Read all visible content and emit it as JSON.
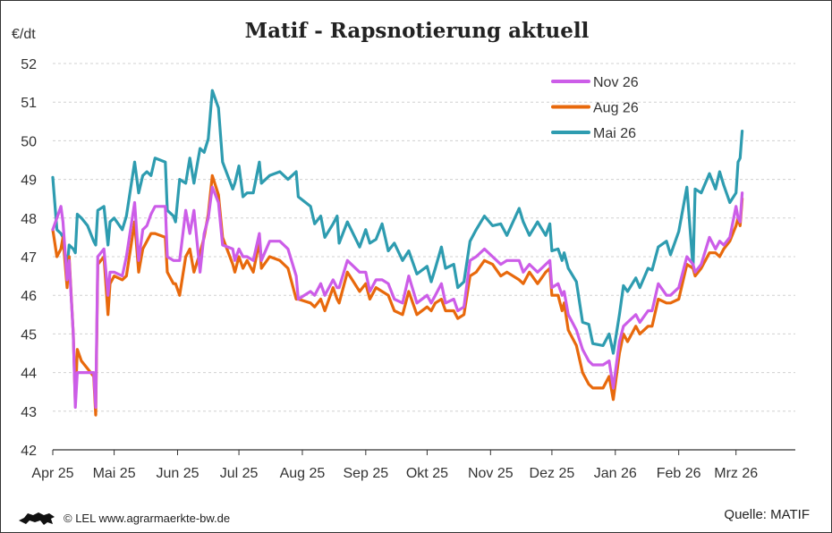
{
  "chart_data": {
    "type": "line",
    "title": "Matif - Rapsnotierung aktuell",
    "ylabel": "€/dt",
    "xlabel": "",
    "ylim": [
      42,
      52
    ],
    "xlim": [
      "2025-04-01",
      "2026-03-30"
    ],
    "yticks": [
      "42",
      "43",
      "44",
      "45",
      "46",
      "47",
      "48",
      "49",
      "50",
      "51",
      "52"
    ],
    "xticks": [
      {
        "date": "2025-04-01",
        "label": "Apr 25"
      },
      {
        "date": "2025-05-01",
        "label": "Mai 25"
      },
      {
        "date": "2025-06-01",
        "label": "Jun 25"
      },
      {
        "date": "2025-07-01",
        "label": "Jul 25"
      },
      {
        "date": "2025-08-01",
        "label": "Aug 25"
      },
      {
        "date": "2025-09-01",
        "label": "Sep 25"
      },
      {
        "date": "2025-10-01",
        "label": "Okt 25"
      },
      {
        "date": "2025-11-01",
        "label": "Nov 25"
      },
      {
        "date": "2025-12-01",
        "label": "Dez 25"
      },
      {
        "date": "2026-01-01",
        "label": "Jan 26"
      },
      {
        "date": "2026-02-01",
        "label": "Feb 26"
      },
      {
        "date": "2026-03-01",
        "label": "Mrz 26"
      }
    ],
    "grid": true,
    "legend_position": "top-right",
    "x": [
      "2025-04-01",
      "2025-04-03",
      "2025-04-05",
      "2025-04-06",
      "2025-04-08",
      "2025-04-09",
      "2025-04-11",
      "2025-04-12",
      "2025-04-13",
      "2025-04-15",
      "2025-04-18",
      "2025-04-21",
      "2025-04-22",
      "2025-04-23",
      "2025-04-26",
      "2025-04-28",
      "2025-04-29",
      "2025-05-01",
      "2025-05-05",
      "2025-05-07",
      "2025-05-11",
      "2025-05-13",
      "2025-05-15",
      "2025-05-17",
      "2025-05-19",
      "2025-05-21",
      "2025-05-26",
      "2025-05-27",
      "2025-05-30",
      "2025-05-31",
      "2025-06-02",
      "2025-06-05",
      "2025-06-07",
      "2025-06-09",
      "2025-06-12",
      "2025-06-14",
      "2025-06-16",
      "2025-06-18",
      "2025-06-21",
      "2025-06-23",
      "2025-06-28",
      "2025-06-29",
      "2025-07-01",
      "2025-07-03",
      "2025-07-05",
      "2025-07-08",
      "2025-07-11",
      "2025-07-12",
      "2025-07-16",
      "2025-07-21",
      "2025-07-25",
      "2025-07-29",
      "2025-07-30",
      "2025-08-05",
      "2025-08-07",
      "2025-08-10",
      "2025-08-12",
      "2025-08-16",
      "2025-08-18",
      "2025-08-19",
      "2025-08-23",
      "2025-08-29",
      "2025-09-01",
      "2025-09-03",
      "2025-09-06",
      "2025-09-09",
      "2025-09-12",
      "2025-09-15",
      "2025-09-19",
      "2025-09-22",
      "2025-09-26",
      "2025-10-01",
      "2025-10-03",
      "2025-10-05",
      "2025-10-08",
      "2025-10-10",
      "2025-10-14",
      "2025-10-16",
      "2025-10-19",
      "2025-10-22",
      "2025-10-25",
      "2025-10-29",
      "2025-11-02",
      "2025-11-06",
      "2025-11-09",
      "2025-11-15",
      "2025-11-17",
      "2025-11-20",
      "2025-11-24",
      "2025-11-28",
      "2025-11-30",
      "2025-12-01",
      "2025-12-04",
      "2025-12-06",
      "2025-12-07",
      "2025-12-09",
      "2025-12-13",
      "2025-12-16",
      "2025-12-19",
      "2025-12-21",
      "2025-12-26",
      "2025-12-29",
      "2025-12-31",
      "2026-01-03",
      "2026-01-05",
      "2026-01-07",
      "2026-01-11",
      "2026-01-13",
      "2026-01-17",
      "2026-01-19",
      "2026-01-22",
      "2026-01-26",
      "2026-01-28",
      "2026-02-01",
      "2026-02-05",
      "2026-02-08",
      "2026-02-09",
      "2026-02-12",
      "2026-02-16",
      "2026-02-19",
      "2026-02-21",
      "2026-02-23",
      "2026-02-26",
      "2026-03-01",
      "2026-03-02",
      "2026-03-03",
      "2026-03-04"
    ],
    "series": [
      {
        "name": "Nov 26",
        "color": "#cc5de8",
        "values": [
          47.7,
          48.0,
          48.3,
          47.9,
          46.4,
          46.9,
          45.0,
          43.1,
          44.0,
          44.0,
          44.0,
          44.0,
          43.1,
          47.0,
          47.2,
          46.0,
          46.6,
          46.6,
          46.5,
          47.0,
          48.4,
          46.9,
          47.7,
          47.8,
          48.1,
          48.3,
          48.3,
          47.0,
          46.9,
          46.9,
          46.9,
          48.2,
          47.6,
          48.2,
          46.6,
          47.6,
          48.0,
          48.8,
          48.4,
          47.3,
          47.2,
          46.9,
          47.2,
          47.0,
          47.0,
          46.9,
          47.6,
          46.9,
          47.4,
          47.4,
          47.2,
          46.5,
          45.9,
          46.1,
          46.0,
          46.3,
          46.0,
          46.4,
          46.2,
          46.2,
          46.9,
          46.6,
          46.6,
          46.1,
          46.4,
          46.4,
          46.3,
          45.9,
          45.8,
          46.5,
          45.8,
          46.0,
          45.8,
          46.0,
          46.3,
          45.8,
          45.9,
          45.6,
          45.7,
          46.9,
          47.0,
          47.2,
          47.0,
          46.8,
          46.9,
          46.9,
          46.6,
          46.8,
          46.6,
          46.8,
          46.9,
          46.2,
          46.3,
          46.0,
          46.1,
          45.5,
          45.1,
          44.6,
          44.3,
          44.2,
          44.2,
          44.3,
          43.6,
          44.8,
          45.2,
          45.3,
          45.5,
          45.3,
          45.6,
          45.6,
          46.3,
          46.0,
          46.0,
          46.2,
          47.0,
          46.8,
          46.6,
          46.8,
          47.5,
          47.2,
          47.4,
          47.3,
          47.5,
          48.3,
          48.0,
          47.9,
          48.65
        ]
      },
      {
        "name": "Aug 26",
        "color": "#e8690c",
        "values": [
          47.7,
          47.0,
          47.2,
          47.5,
          46.2,
          47.0,
          45.0,
          43.2,
          44.6,
          44.3,
          44.1,
          43.9,
          42.9,
          46.8,
          47.0,
          45.5,
          46.3,
          46.5,
          46.4,
          46.5,
          47.9,
          46.6,
          47.2,
          47.4,
          47.6,
          47.6,
          47.5,
          46.6,
          46.3,
          46.3,
          46.0,
          47.0,
          47.2,
          46.6,
          47.1,
          47.5,
          48.1,
          49.1,
          48.6,
          47.5,
          46.8,
          46.6,
          47.0,
          46.7,
          46.9,
          46.6,
          47.4,
          46.7,
          47.0,
          46.9,
          46.7,
          45.9,
          45.9,
          45.8,
          45.7,
          45.9,
          45.6,
          46.2,
          45.9,
          45.8,
          46.6,
          46.1,
          46.3,
          45.9,
          46.2,
          46.1,
          46.0,
          45.6,
          45.5,
          46.1,
          45.5,
          45.7,
          45.6,
          45.8,
          45.9,
          45.6,
          45.6,
          45.4,
          45.5,
          46.5,
          46.6,
          46.9,
          46.8,
          46.5,
          46.6,
          46.4,
          46.3,
          46.6,
          46.3,
          46.6,
          46.7,
          46.0,
          46.0,
          45.6,
          45.8,
          45.1,
          44.7,
          44.0,
          43.7,
          43.6,
          43.6,
          43.9,
          43.3,
          44.5,
          45.0,
          44.8,
          45.2,
          45.0,
          45.2,
          45.2,
          45.9,
          45.8,
          45.8,
          45.9,
          46.8,
          46.7,
          46.5,
          46.7,
          47.1,
          47.1,
          47.0,
          47.2,
          47.4,
          47.8,
          48.0,
          47.8,
          48.5
        ]
      },
      {
        "name": "Mai 26",
        "color": "#2e9cb0",
        "values": [
          49.05,
          47.7,
          47.6,
          47.5,
          46.7,
          47.3,
          47.2,
          47.1,
          48.1,
          48.0,
          47.8,
          47.4,
          47.3,
          48.2,
          48.3,
          47.3,
          47.9,
          48.0,
          47.7,
          48.05,
          49.45,
          48.65,
          49.1,
          49.2,
          49.1,
          49.55,
          49.45,
          48.2,
          48.05,
          47.9,
          49.0,
          48.9,
          49.55,
          48.9,
          49.8,
          49.7,
          50.05,
          51.3,
          50.85,
          49.45,
          48.75,
          48.9,
          49.35,
          48.55,
          48.65,
          48.65,
          49.45,
          48.9,
          49.1,
          49.2,
          49.0,
          49.2,
          48.55,
          48.3,
          47.85,
          48.05,
          47.5,
          47.85,
          48.05,
          47.35,
          47.9,
          47.25,
          47.7,
          47.35,
          47.45,
          47.85,
          47.15,
          47.35,
          46.9,
          47.15,
          46.55,
          46.75,
          46.35,
          46.7,
          47.25,
          46.7,
          46.8,
          46.2,
          46.35,
          47.4,
          47.7,
          48.05,
          47.8,
          47.85,
          47.55,
          48.25,
          47.9,
          47.55,
          47.9,
          47.55,
          47.85,
          47.15,
          47.2,
          46.9,
          47.1,
          46.7,
          46.35,
          45.3,
          45.25,
          44.75,
          44.7,
          45.0,
          44.5,
          45.5,
          46.25,
          46.1,
          46.45,
          46.2,
          46.7,
          46.65,
          47.25,
          47.4,
          47.05,
          47.65,
          48.8,
          46.7,
          48.75,
          48.65,
          49.15,
          48.75,
          49.2,
          48.85,
          48.4,
          48.65,
          49.45,
          49.55,
          50.25
        ]
      }
    ]
  },
  "footer": {
    "credit": "© LEL www.agrarmaerkte-bw.de",
    "source": "Quelle: MATIF",
    "logo_icon": "lion-icon"
  }
}
